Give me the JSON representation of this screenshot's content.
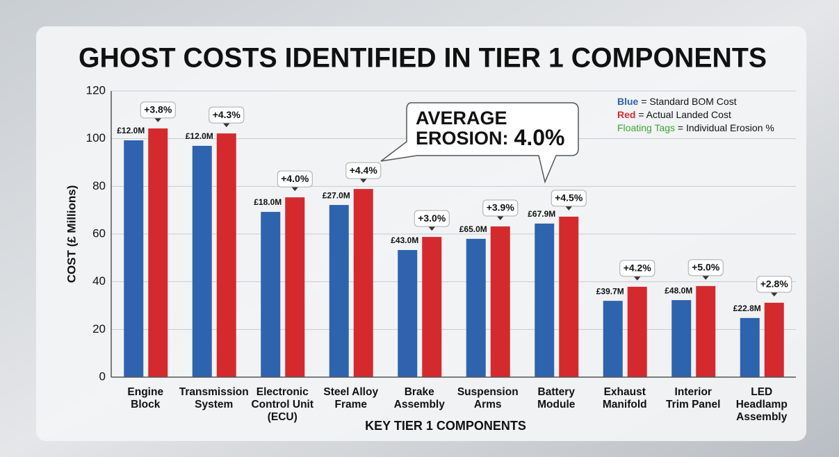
{
  "chart_data": {
    "type": "bar",
    "title": "GHOST COSTS IDENTIFIED IN TIER 1 COMPONENTS",
    "y_label": "COST (£ Millions)",
    "x_label": "KEY TIER 1 COMPONENTS",
    "categories": [
      "Engine\nBlock",
      "Transmission\nSystem",
      "Electronic\nControl Unit\n(ECU)",
      "Steel Alloy\nFrame",
      "Brake\nAssembly",
      "Suspension\nArms",
      "Battery\nModule",
      "Exhaust\nManifold",
      "Interior\nTrim Panel",
      "LED\nHeadlamp\nAssembly"
    ],
    "series": [
      {
        "name": "Standard BOM Cost",
        "key": "Blue",
        "color": "#2e63ad",
        "values": [
          99.3,
          97,
          69.3,
          72.2,
          53.3,
          58,
          64.4,
          32,
          32.3,
          24.8
        ]
      },
      {
        "name": "Actual Landed Cost",
        "key": "Red",
        "color": "#d42a2e",
        "values": [
          104.3,
          102.2,
          75.4,
          78.9,
          58.8,
          63.2,
          67.3,
          37.9,
          38.2,
          31.2
        ]
      }
    ],
    "cost_tags": [
      "£12.0M",
      "£12.0M",
      "£18.0M",
      "£27.0M",
      "£43.0M",
      "£65.0M",
      "£67.9M",
      "£39.7M",
      "£48.0M",
      "£22.8M"
    ],
    "erosion_tags": [
      "+3.8%",
      "+4.3%",
      "+4.0%",
      "+4.4%",
      "+3.0%",
      "+3.9%",
      "+4.5%",
      "+4.2%",
      "+5.0%",
      "+2.8%"
    ],
    "legend_separator": " = ",
    "legend_note": {
      "key": "Floating Tags",
      "color": "#3aa635",
      "text": "Individual Erosion %"
    },
    "callout": {
      "line1": "AVERAGE",
      "label": "EROSION:",
      "value": "4.0%"
    },
    "ylim": [
      0,
      120
    ],
    "yticks": [
      0,
      20,
      40,
      60,
      80,
      100,
      120
    ],
    "grid": true
  }
}
